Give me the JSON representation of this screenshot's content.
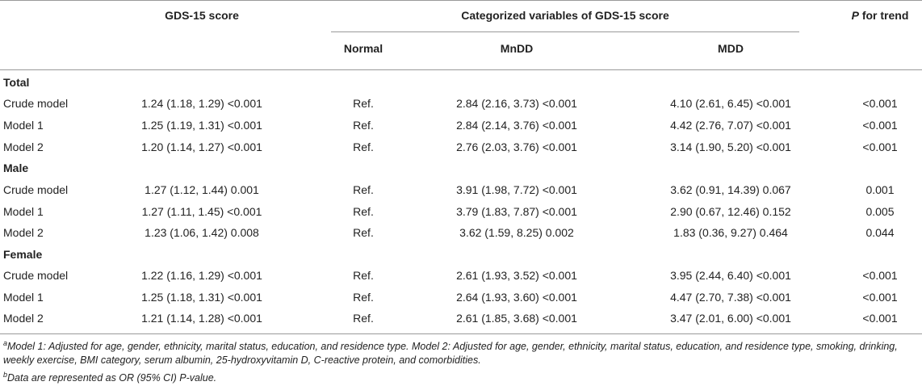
{
  "header": {
    "col_score": "GDS-15 score",
    "col_categorized": "Categorized variables of GDS-15 score",
    "col_p_italic": "P",
    "col_p_rest": " for trend",
    "sub_normal": "Normal",
    "sub_mndd": "MnDD",
    "sub_mdd": "MDD"
  },
  "sections": [
    {
      "title": "Total",
      "rows": [
        {
          "label": "Crude model",
          "score": "1.24 (1.18, 1.29) <0.001",
          "normal": "Ref.",
          "mndd": "2.84 (2.16, 3.73) <0.001",
          "mdd": "4.10 (2.61, 6.45) <0.001",
          "p": "<0.001"
        },
        {
          "label": "Model 1",
          "score": "1.25 (1.19, 1.31) <0.001",
          "normal": "Ref.",
          "mndd": "2.84 (2.14, 3.76) <0.001",
          "mdd": "4.42 (2.76, 7.07) <0.001",
          "p": "<0.001"
        },
        {
          "label": "Model 2",
          "score": "1.20 (1.14, 1.27) <0.001",
          "normal": "Ref.",
          "mndd": "2.76 (2.03, 3.76) <0.001",
          "mdd": "3.14 (1.90, 5.20) <0.001",
          "p": "<0.001"
        }
      ]
    },
    {
      "title": "Male",
      "rows": [
        {
          "label": "Crude model",
          "score": "1.27 (1.12, 1.44) 0.001",
          "normal": "Ref.",
          "mndd": "3.91 (1.98, 7.72) <0.001",
          "mdd": "3.62 (0.91, 14.39) 0.067",
          "p": "0.001"
        },
        {
          "label": "Model 1",
          "score": "1.27 (1.11, 1.45) <0.001",
          "normal": "Ref.",
          "mndd": "3.79 (1.83, 7.87) <0.001",
          "mdd": "2.90 (0.67, 12.46) 0.152",
          "p": "0.005"
        },
        {
          "label": "Model 2",
          "score": "1.23 (1.06, 1.42) 0.008",
          "normal": "Ref.",
          "mndd": "3.62 (1.59, 8.25) 0.002",
          "mdd": "1.83 (0.36, 9.27) 0.464",
          "p": "0.044"
        }
      ]
    },
    {
      "title": "Female",
      "rows": [
        {
          "label": "Crude model",
          "score": "1.22 (1.16, 1.29) <0.001",
          "normal": "Ref.",
          "mndd": "2.61 (1.93, 3.52) <0.001",
          "mdd": "3.95 (2.44, 6.40) <0.001",
          "p": "<0.001"
        },
        {
          "label": "Model 1",
          "score": "1.25 (1.18, 1.31) <0.001",
          "normal": "Ref.",
          "mndd": "2.64 (1.93, 3.60) <0.001",
          "mdd": "4.47 (2.70, 7.38) <0.001",
          "p": "<0.001"
        },
        {
          "label": "Model 2",
          "score": "1.21 (1.14, 1.28) <0.001",
          "normal": "Ref.",
          "mndd": "2.61 (1.85, 3.68) <0.001",
          "mdd": "3.47 (2.01, 6.00) <0.001",
          "p": "<0.001"
        }
      ]
    }
  ],
  "footnotes": {
    "a_mark": "a",
    "a_text": "Model 1: Adjusted for age, gender, ethnicity, marital status, education, and residence type. Model 2: Adjusted for age, gender, ethnicity, marital status, education, and residence type, smoking, drinking, weekly exercise, BMI category, serum albumin, 25-hydroxyvitamin D, C-reactive protein, and comorbidities.",
    "b_mark": "b",
    "b_text": "Data are represented as OR (95% CI) P-value."
  }
}
